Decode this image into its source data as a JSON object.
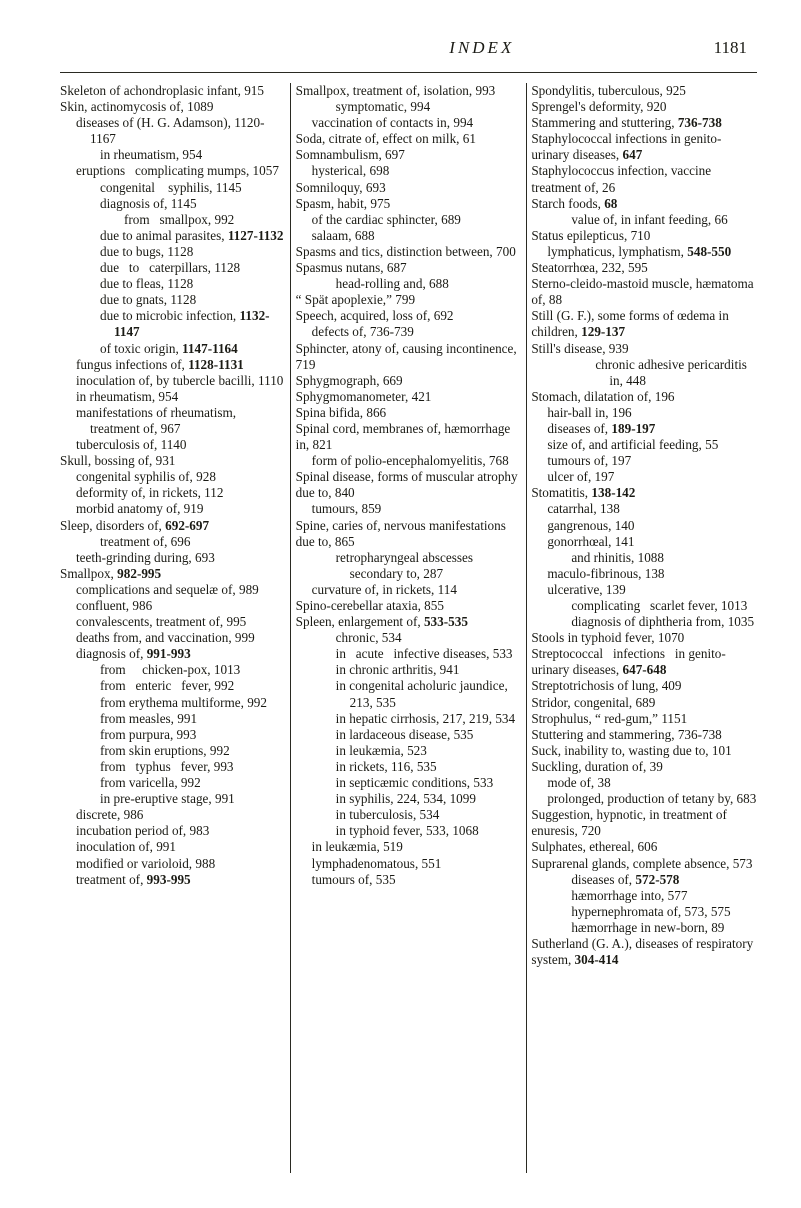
{
  "header": {
    "title": "INDEX",
    "page_number": "1181"
  },
  "columns": [
    [
      {
        "indent": 0,
        "text": "Skeleton of achondroplasic infant, 915"
      },
      {
        "indent": 0,
        "text": "Skin, actinomycosis of, 1089"
      },
      {
        "indent": 1,
        "text": "diseases of (H. G. Adamson), 1120-1167"
      },
      {
        "indent": 2,
        "text": "in rheumatism, 954"
      },
      {
        "indent": 1,
        "text": "eruptions   complicating mumps, 1057"
      },
      {
        "indent": 2,
        "text": "congenital    syphilis, 1145"
      },
      {
        "indent": 2,
        "text": "diagnosis of, 1145"
      },
      {
        "indent": 3,
        "text": "from   smallpox, 992"
      },
      {
        "indent": 2,
        "text": "due to animal parasites, <b>1127-1132</b>"
      },
      {
        "indent": 2,
        "text": "due to bugs, 1128"
      },
      {
        "indent": 2,
        "text": "due   to   caterpillars, 1128"
      },
      {
        "indent": 2,
        "text": "due to fleas, 1128"
      },
      {
        "indent": 2,
        "text": "due to gnats, 1128"
      },
      {
        "indent": 2,
        "text": "due to microbic infection, <b>1132-1147</b>"
      },
      {
        "indent": 2,
        "text": "of toxic origin, <b>1147-1164</b>"
      },
      {
        "indent": 1,
        "text": "fungus infections of, <b>1128-1131</b>"
      },
      {
        "indent": 1,
        "text": "inoculation of, by tubercle bacilli, 1110"
      },
      {
        "indent": 1,
        "text": "in rheumatism, 954"
      },
      {
        "indent": 1,
        "text": "manifestations of rheumatism, treatment of, 967"
      },
      {
        "indent": 1,
        "text": "tuberculosis of, 1140"
      },
      {
        "indent": 0,
        "text": "Skull, bossing of, 931"
      },
      {
        "indent": 1,
        "text": "congenital syphilis of, 928"
      },
      {
        "indent": 1,
        "text": "deformity of, in rickets, 112"
      },
      {
        "indent": 1,
        "text": "morbid anatomy of, 919"
      },
      {
        "indent": 0,
        "text": "Sleep, disorders of, <b>692-697</b>"
      },
      {
        "indent": 2,
        "text": "treatment of, 696"
      },
      {
        "indent": 1,
        "text": "teeth-grinding during, 693"
      },
      {
        "indent": 0,
        "text": "Smallpox, <b>982-995</b>"
      },
      {
        "indent": 1,
        "text": "complications and sequelæ of, 989"
      },
      {
        "indent": 1,
        "text": "confluent, 986"
      },
      {
        "indent": 1,
        "text": "convalescents, treatment of, 995"
      },
      {
        "indent": 1,
        "text": "deaths from, and vaccination, 999"
      },
      {
        "indent": 1,
        "text": "diagnosis of, <b>991-993</b>"
      },
      {
        "indent": 2,
        "text": "from     chicken-pox, 1013"
      },
      {
        "indent": 2,
        "text": "from   enteric   fever, 992"
      },
      {
        "indent": 2,
        "text": "from erythema multiforme, 992"
      },
      {
        "indent": 2,
        "text": "from measles, 991"
      },
      {
        "indent": 2,
        "text": "from purpura, 993"
      },
      {
        "indent": 2,
        "text": "from skin eruptions, 992"
      },
      {
        "indent": 2,
        "text": "from   typhus   fever, 993"
      },
      {
        "indent": 2,
        "text": "from varicella, 992"
      },
      {
        "indent": 2,
        "text": "in pre-eruptive stage, 991"
      },
      {
        "indent": 1,
        "text": "discrete, 986"
      },
      {
        "indent": 1,
        "text": "incubation period of, 983"
      },
      {
        "indent": 1,
        "text": "inoculation of, 991"
      },
      {
        "indent": 1,
        "text": "modified or varioloid, 988"
      },
      {
        "indent": 1,
        "text": "treatment of, <b>993-995</b>"
      }
    ],
    [
      {
        "indent": 0,
        "text": "Smallpox, treatment of, isolation, 993"
      },
      {
        "indent": 2,
        "text": "symptomatic, 994"
      },
      {
        "indent": 1,
        "text": "vaccination of contacts in, 994"
      },
      {
        "indent": 0,
        "text": "Soda, citrate of, effect on milk, 61"
      },
      {
        "indent": 0,
        "text": "Somnambulism, 697"
      },
      {
        "indent": 1,
        "text": "hysterical, 698"
      },
      {
        "indent": 0,
        "text": "Somniloquy, 693"
      },
      {
        "indent": 0,
        "text": "Spasm, habit, 975"
      },
      {
        "indent": 1,
        "text": "of the cardiac sphincter, 689"
      },
      {
        "indent": 1,
        "text": "salaam, 688"
      },
      {
        "indent": 0,
        "text": "Spasms and tics, distinction between, 700"
      },
      {
        "indent": 0,
        "text": "Spasmus nutans, 687"
      },
      {
        "indent": 2,
        "text": "head-rolling and, 688"
      },
      {
        "indent": 0,
        "text": "“ Spät apoplexie,” 799"
      },
      {
        "indent": 0,
        "text": "Speech, acquired, loss of, 692"
      },
      {
        "indent": 1,
        "text": "defects of, 736-739"
      },
      {
        "indent": 0,
        "text": "Sphincter, atony of, causing incontinence, 719"
      },
      {
        "indent": 0,
        "text": "Sphygmograph, 669"
      },
      {
        "indent": 0,
        "text": "Sphygmomanometer, 421"
      },
      {
        "indent": 0,
        "text": "Spina bifida, 866"
      },
      {
        "indent": 0,
        "text": "Spinal cord, membranes of, hæmorrhage in, 821"
      },
      {
        "indent": 1,
        "text": "form of polio-encephalomyelitis, 768"
      },
      {
        "indent": 0,
        "text": "Spinal disease, forms of muscular atrophy due to, 840"
      },
      {
        "indent": 1,
        "text": "tumours, 859"
      },
      {
        "indent": 0,
        "text": "Spine, caries of, nervous manifestations due to, 865"
      },
      {
        "indent": 2,
        "text": "retropharyngeal abscesses secondary to, 287"
      },
      {
        "indent": 1,
        "text": "curvature of, in rickets, 114"
      },
      {
        "indent": 0,
        "text": "Spino-cerebellar ataxia, 855"
      },
      {
        "indent": 0,
        "text": "Spleen, enlargement of, <b>533-535</b>"
      },
      {
        "indent": 2,
        "text": "chronic, 534"
      },
      {
        "indent": 2,
        "text": "in   acute   infective diseases, 533"
      },
      {
        "indent": 2,
        "text": "in chronic arthritis, 941"
      },
      {
        "indent": 2,
        "text": "in congenital acholuric jaundice, 213, 535"
      },
      {
        "indent": 2,
        "text": "in hepatic cirrhosis, 217, 219, 534"
      },
      {
        "indent": 2,
        "text": "in lardaceous disease, 535"
      },
      {
        "indent": 2,
        "text": "in leukæmia, 523"
      },
      {
        "indent": 2,
        "text": "in rickets, 116, 535"
      },
      {
        "indent": 2,
        "text": "in septicæmic conditions, 533"
      },
      {
        "indent": 2,
        "text": "in syphilis, 224, 534, 1099"
      },
      {
        "indent": 2,
        "text": "in tuberculosis, 534"
      },
      {
        "indent": 2,
        "text": "in typhoid fever, 533, 1068"
      },
      {
        "indent": 1,
        "text": "in leukæmia, 519"
      },
      {
        "indent": 1,
        "text": "lymphadenomatous, 551"
      },
      {
        "indent": 1,
        "text": "tumours of, 535"
      }
    ],
    [
      {
        "indent": 0,
        "text": "Spondylitis, tuberculous, 925"
      },
      {
        "indent": 0,
        "text": "Sprengel's deformity, 920"
      },
      {
        "indent": 0,
        "text": "Stammering and stuttering, <b>736-738</b>"
      },
      {
        "indent": 0,
        "text": "Staphylococcal infections in genito-urinary diseases, <b>647</b>"
      },
      {
        "indent": 0,
        "text": "Staphylococcus infection, vaccine treatment of, 26"
      },
      {
        "indent": 0,
        "text": "Starch foods, <b>68</b>"
      },
      {
        "indent": 2,
        "text": "value of, in infant feeding, 66"
      },
      {
        "indent": 0,
        "text": "Status epilepticus, 710"
      },
      {
        "indent": 1,
        "text": "lymphaticus, lymphatism, <b>548-550</b>"
      },
      {
        "indent": 0,
        "text": "Steatorrhœa, 232, 595"
      },
      {
        "indent": 0,
        "text": "Sterno-cleido-mastoid muscle, hæmatoma of, 88"
      },
      {
        "indent": 0,
        "text": "Still (G. F.), some forms of œdema in children, <b>129-137</b>"
      },
      {
        "indent": 0,
        "text": "Still's disease, 939"
      },
      {
        "indent": 3,
        "text": "chronic adhesive pericarditis in, 448"
      },
      {
        "indent": 0,
        "text": "Stomach, dilatation of, 196"
      },
      {
        "indent": 1,
        "text": "hair-ball in, 196"
      },
      {
        "indent": 1,
        "text": "diseases of, <b>189-197</b>"
      },
      {
        "indent": 1,
        "text": "size of, and artificial feeding, 55"
      },
      {
        "indent": 1,
        "text": "tumours of, 197"
      },
      {
        "indent": 1,
        "text": "ulcer of, 197"
      },
      {
        "indent": 0,
        "text": "Stomatitis, <b>138-142</b>"
      },
      {
        "indent": 1,
        "text": "catarrhal, 138"
      },
      {
        "indent": 1,
        "text": "gangrenous, 140"
      },
      {
        "indent": 1,
        "text": "gonorrhœal, 141"
      },
      {
        "indent": 2,
        "text": "and rhinitis, 1088"
      },
      {
        "indent": 1,
        "text": "maculo-fibrinous, 138"
      },
      {
        "indent": 1,
        "text": "ulcerative, 139"
      },
      {
        "indent": 2,
        "text": "complicating   scarlet fever, 1013"
      },
      {
        "indent": 2,
        "text": "diagnosis of diphtheria from, 1035"
      },
      {
        "indent": 0,
        "text": "Stools in typhoid fever, 1070"
      },
      {
        "indent": 0,
        "text": "Streptococcal   infections   in genito-urinary diseases, <b>647-648</b>"
      },
      {
        "indent": 0,
        "text": "Streptotrichosis of lung, 409"
      },
      {
        "indent": 0,
        "text": "Stridor, congenital, 689"
      },
      {
        "indent": 0,
        "text": "Strophulus, “ red-gum,” 1151"
      },
      {
        "indent": 0,
        "text": "Stuttering and stammering, 736-738"
      },
      {
        "indent": 0,
        "text": "Suck, inability to, wasting due to, 101"
      },
      {
        "indent": 0,
        "text": "Suckling, duration of, 39"
      },
      {
        "indent": 1,
        "text": "mode of, 38"
      },
      {
        "indent": 1,
        "text": "prolonged, production of tetany by, 683"
      },
      {
        "indent": 0,
        "text": "Suggestion, hypnotic, in treatment of enuresis, 720"
      },
      {
        "indent": 0,
        "text": "Sulphates, ethereal, 606"
      },
      {
        "indent": 0,
        "text": "Suprarenal glands, complete absence, 573"
      },
      {
        "indent": 2,
        "text": "diseases of, <b>572-578</b>"
      },
      {
        "indent": 2,
        "text": "hæmorrhage into, 577"
      },
      {
        "indent": 2,
        "text": "hypernephromata of, 573, 575"
      },
      {
        "indent": 2,
        "text": "hæmorrhage in new-born, 89"
      },
      {
        "indent": 0,
        "text": "Sutherland (G. A.), diseases of respiratory system, <b>304-414</b>"
      }
    ]
  ]
}
